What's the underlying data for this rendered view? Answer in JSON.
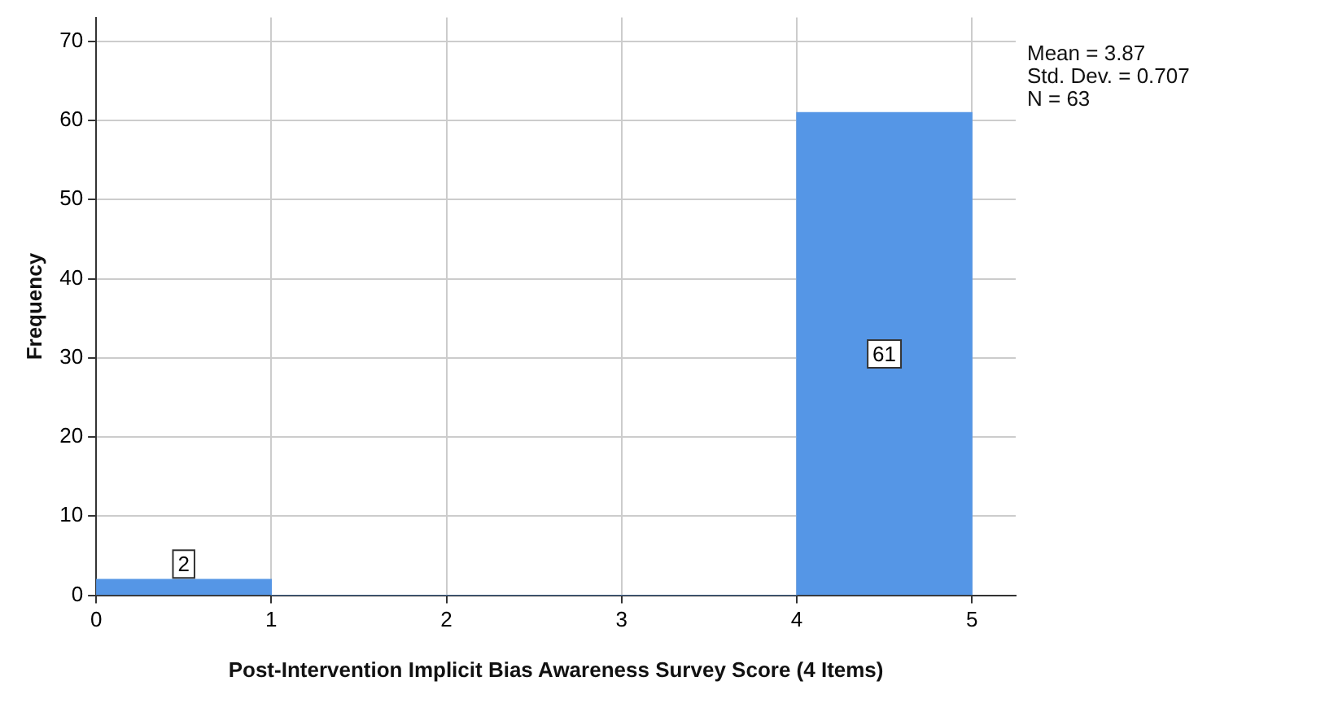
{
  "chart_data": {
    "type": "histogram",
    "xlabel": "Post-Intervention Implicit Bias Awareness Survey Score (4 Items)",
    "ylabel": "Frequency",
    "bins": [
      0,
      1,
      2,
      3,
      4,
      5
    ],
    "values": [
      2,
      0,
      0,
      0,
      61
    ],
    "value_labels": [
      "2",
      null,
      null,
      null,
      "61"
    ],
    "color": "#5596e6",
    "xlim": [
      0,
      5.25
    ],
    "xticks": [
      0,
      1,
      2,
      3,
      4,
      5
    ],
    "ylim": [
      0,
      73
    ],
    "yticks": [
      0,
      10,
      20,
      30,
      40,
      50,
      60,
      70
    ],
    "grid": true,
    "legend": false,
    "annotations": [
      "Mean = 3.87",
      "Std. Dev. = 0.707",
      "N = 63"
    ]
  }
}
